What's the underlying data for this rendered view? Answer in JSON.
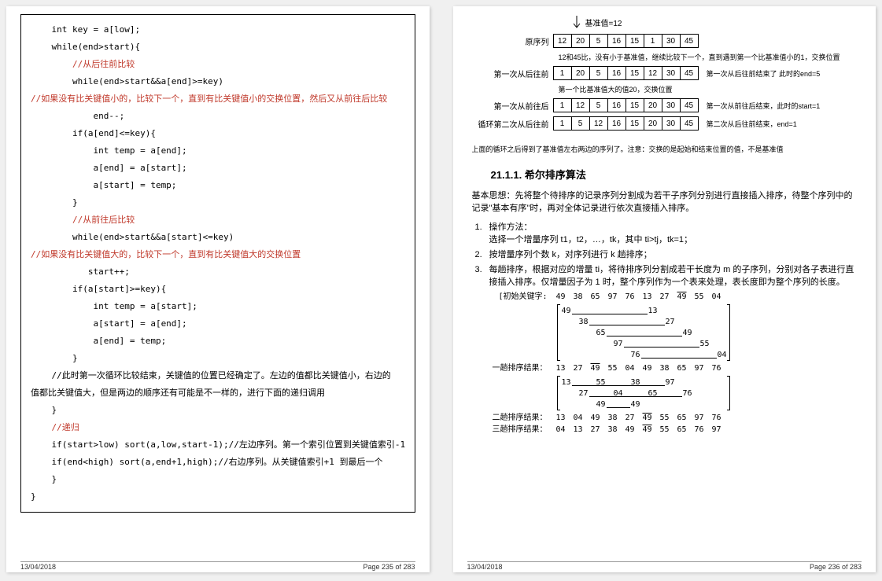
{
  "left": {
    "code": [
      {
        "t": "    int key = a[low];",
        "c": ""
      },
      {
        "t": "    while(end>start){",
        "c": ""
      },
      {
        "t": "        //从后往前比较",
        "c": "red"
      },
      {
        "t": "        while(end>start&&a[end]>=key)",
        "c": ""
      },
      {
        "t": "//如果没有比关键值小的，比较下一个，直到有比关键值小的交换位置，然后又从前往后比较",
        "c": "red"
      },
      {
        "t": "            end--;",
        "c": ""
      },
      {
        "t": "        if(a[end]<=key){",
        "c": ""
      },
      {
        "t": "            int temp = a[end];",
        "c": ""
      },
      {
        "t": "            a[end] = a[start];",
        "c": ""
      },
      {
        "t": "            a[start] = temp;",
        "c": ""
      },
      {
        "t": "        }",
        "c": ""
      },
      {
        "t": "        //从前往后比较",
        "c": "red"
      },
      {
        "t": "        while(end>start&&a[start]<=key)",
        "c": ""
      },
      {
        "t": "//如果没有比关键值大的，比较下一个，直到有比关键值大的交换位置",
        "c": "red"
      },
      {
        "t": "           start++;",
        "c": ""
      },
      {
        "t": "        if(a[start]>=key){",
        "c": ""
      },
      {
        "t": "            int temp = a[start];",
        "c": ""
      },
      {
        "t": "            a[start] = a[end];",
        "c": ""
      },
      {
        "t": "            a[end] = temp;",
        "c": ""
      },
      {
        "t": "        }",
        "c": ""
      },
      {
        "t": "    //此时第一次循环比较结束，关键值的位置已经确定了。左边的值都比关键值小，右边的",
        "c": ""
      },
      {
        "t": "值都比关键值大，但是两边的顺序还有可能是不一样的，进行下面的递归调用",
        "c": ""
      },
      {
        "t": "    }",
        "c": ""
      },
      {
        "t": "    //递归",
        "c": "red"
      },
      {
        "t": "    if(start>low) sort(a,low,start-1);//左边序列。第一个索引位置到关键值索引-1",
        "c": ""
      },
      {
        "t": "    if(end<high) sort(a,end+1,high);//右边序列。从关键值索引+1 到最后一个",
        "c": ""
      },
      {
        "t": "    }",
        "c": ""
      },
      {
        "t": "}",
        "c": ""
      }
    ],
    "footer_date": "13/04/2018",
    "footer_page": "Page 235 of 283"
  },
  "right": {
    "pivot_note": "基准值=12",
    "rows": [
      {
        "label": "原序列",
        "cells": [
          "12",
          "20",
          "5",
          "16",
          "15",
          "1",
          "30",
          "45"
        ],
        "annot": ""
      },
      {
        "note": "12和45比，没有小于基准值，继续比较下一个，直到遇到第一个比基准值小的1，交换位置"
      },
      {
        "label": "第一次从后往前",
        "cells": [
          "1",
          "20",
          "5",
          "16",
          "15",
          "12",
          "30",
          "45"
        ],
        "annot": "第一次从后往前结束了      此时的end=5"
      },
      {
        "note": "第一个比基准值大的值20，交换位置"
      },
      {
        "label": "第一次从前往后",
        "cells": [
          "1",
          "12",
          "5",
          "16",
          "15",
          "20",
          "30",
          "45"
        ],
        "annot": "第一次从前往后结束，此时的start=1"
      },
      {
        "label": "循环第二次从后往前",
        "cells": [
          "1",
          "5",
          "12",
          "16",
          "15",
          "20",
          "30",
          "45"
        ],
        "annot": "第二次从后往前结束，end=1"
      }
    ],
    "loop_note": "上面的循环之后得到了基准值左右两边的序列了。注意：交换的是起始和结束位置的值，不是基准值",
    "section_num": "21.1.1.",
    "section_title": "希尔排序算法",
    "para1": "基本思想：先将整个待排序的记录序列分割成为若干子序列分别进行直接插入排序，待整个序列中的记录\"基本有序\"时，再对全体记录进行依次直接插入排序。",
    "ol": [
      "操作方法：\n选择一个增量序列 t1，t2，…，tk，其中 ti>tj，tk=1；",
      "按增量序列个数 k，对序列进行 k 趟排序；",
      "每趟排序，根据对应的增量 ti，将待排序列分割成若干长度为 m 的子序列，分别对各子表进行直接插入排序。仅增量因子为 1 时，整个序列作为一个表来处理，表长度即为整个序列的长度。"
    ],
    "shell": {
      "label0": "[初始关键字:",
      "initial": [
        "49",
        "38",
        "65",
        "97",
        "76",
        "13",
        "27",
        "49",
        "55",
        "04"
      ],
      "overline_idx": [
        7
      ],
      "pass1_pairs": [
        [
          "49",
          "",
          "",
          "",
          "",
          "13"
        ],
        [
          "",
          "38",
          "",
          "",
          "",
          "",
          "27"
        ],
        [
          "",
          "",
          "65",
          "",
          "",
          "",
          "",
          "49"
        ],
        [
          "",
          "",
          "",
          "97",
          "",
          "",
          "",
          "",
          "55"
        ],
        [
          "",
          "",
          "",
          "",
          "76",
          "",
          "",
          "",
          "",
          "04"
        ]
      ],
      "pass1_label": "一趟排序结果：",
      "pass1": [
        "13",
        "27",
        "49",
        "55",
        "04",
        "49",
        "38",
        "65",
        "97",
        "76"
      ],
      "pass2_pairs": [
        [
          "13",
          "",
          "55",
          "",
          "38",
          "",
          "97"
        ],
        [
          "",
          "27",
          "",
          "04",
          "",
          "65",
          "",
          "76"
        ],
        [
          "",
          "",
          "49",
          "",
          "49"
        ]
      ],
      "pass2_label": "二趟排序结果：",
      "pass2": [
        "13",
        "04",
        "49",
        "38",
        "27",
        "49",
        "55",
        "65",
        "97",
        "76"
      ],
      "pass3_label": "三趟排序结果：",
      "pass3": [
        "04",
        "13",
        "27",
        "38",
        "49",
        "49",
        "55",
        "65",
        "76",
        "97"
      ]
    },
    "footer_date": "13/04/2018",
    "footer_page": "Page 236 of 283"
  }
}
